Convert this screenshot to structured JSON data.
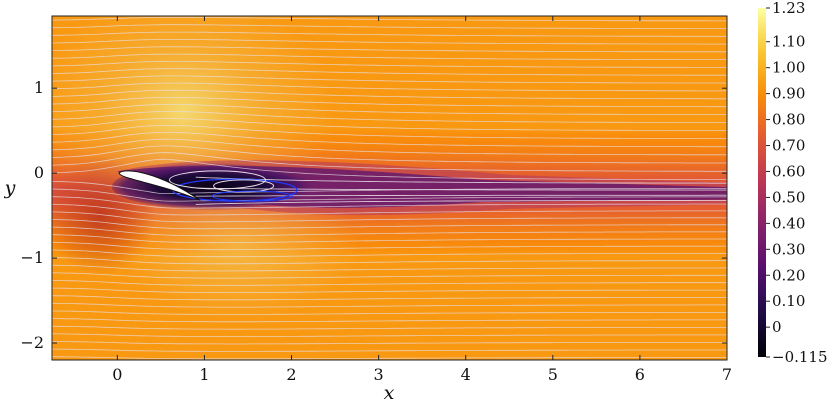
{
  "chart_data": {
    "type": "heatmap",
    "title": "",
    "xlabel": "x",
    "ylabel": "y",
    "xlim": [
      -0.75,
      7.0
    ],
    "ylim": [
      -2.2,
      1.85
    ],
    "x_ticks": [
      0,
      1,
      2,
      3,
      4,
      5,
      6,
      7
    ],
    "x_tick_labels": [
      "0",
      "1",
      "2",
      "3",
      "4",
      "5",
      "6",
      "7"
    ],
    "y_ticks": [
      1,
      0,
      -1,
      -2
    ],
    "y_tick_labels": [
      "1",
      "0",
      "−1",
      "−2"
    ],
    "colorbar": {
      "colormap": "inferno",
      "min": -0.115,
      "max": 1.23,
      "ticks": [
        1.23,
        1.1,
        1.0,
        0.9,
        0.8,
        0.7,
        0.6,
        0.5,
        0.4,
        0.3,
        0.2,
        0.1,
        0,
        -0.115
      ],
      "tick_labels": [
        "1.23",
        "1.10",
        "1.00",
        "0.90",
        "0.80",
        "0.70",
        "0.60",
        "0.50",
        "0.40",
        "0.30",
        "0.20",
        "0.10",
        "0",
        "−0.115"
      ]
    },
    "freestream_value": 0.93,
    "airfoil": {
      "leading_edge": [
        0.02,
        0.0
      ],
      "trailing_edge": [
        0.95,
        -0.32
      ],
      "color": "#ffffff"
    },
    "overlays": {
      "streamline_color": "#e8e0e8",
      "recirculation_contour_color": "#1e3cff",
      "grid": false
    }
  }
}
